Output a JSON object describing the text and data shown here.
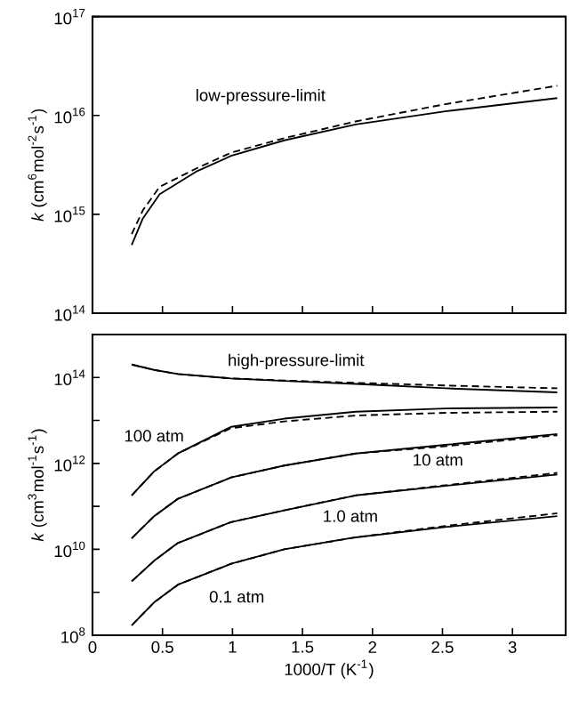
{
  "chart_data": [
    {
      "type": "line",
      "ylabel": "*k* (cm$^{6}$mol$^{-2}$s$^{-1}$)",
      "log": "y",
      "tick_labels": "y",
      "xlim": [
        0,
        3.38
      ],
      "ylim": [
        100000000000000.0,
        1e+17
      ],
      "xticks": [
        0,
        0.5,
        1,
        1.5,
        2,
        2.5,
        3
      ],
      "yticks": [
        {
          "value": 100000000000000.0,
          "label": "10$^{14}$"
        },
        {
          "value": 1000000000000000.0,
          "label": "10$^{15}$"
        },
        {
          "value": 1e+16,
          "label": "10$^{16}$"
        },
        {
          "value": 1e+17,
          "label": "10$^{17}$"
        }
      ],
      "annotations": [
        "low-pressure-limit"
      ],
      "series": [
        {
          "color": "#000000",
          "line_style": "solid",
          "x": [
            0.28,
            0.36,
            0.48,
            0.74,
            0.99,
            1.37,
            1.88,
            2.52,
            3.32
          ],
          "values": [
            490000000000000.0,
            910000000000000.0,
            1600000000000000.0,
            2700000000000000.0,
            3900000000000000.0,
            5600000000000000.0,
            8100000000000000.0,
            1.1e+16,
            1.5e+16
          ]
        },
        {
          "color": "#000000",
          "line_style": "dashed",
          "x": [
            0.28,
            0.36,
            0.48,
            0.74,
            0.99,
            1.37,
            1.88,
            2.52,
            3.32
          ],
          "values": [
            630000000000000.0,
            1100000000000000.0,
            1900000000000000.0,
            2900000000000000.0,
            4200000000000000.0,
            5900000000000000.0,
            8700000000000000.0,
            1.3e+16,
            2e+16
          ]
        }
      ]
    },
    {
      "type": "line",
      "xlabel": "1000/T (K$^{-1}$)",
      "ylabel": "*k* (cm$^{3}$mol$^{-1}$s$^{-1}$)",
      "log": "y",
      "xlim": [
        0,
        3.38
      ],
      "ylim": [
        100000000.0,
        1000000000000000.0
      ],
      "xticks": [
        0,
        0.5,
        1,
        1.5,
        2,
        2.5,
        3
      ],
      "yticks": [
        {
          "value": 100000000.0,
          "label": "10$^{8}$"
        },
        {
          "value": 1000000000.0,
          "label": null
        },
        {
          "value": 10000000000.0,
          "label": "10$^{10}$"
        },
        {
          "value": 100000000000.0,
          "label": null
        },
        {
          "value": 1000000000000.0,
          "label": "10$^{12}$"
        },
        {
          "value": 10000000000000.0,
          "label": null
        },
        {
          "value": 100000000000000.0,
          "label": "10$^{14}$"
        }
      ],
      "annotations": [
        "high-pressure-limit",
        "100 atm",
        "10 atm",
        "1.0 atm",
        "0.1 atm"
      ],
      "series": [
        {
          "color": "#000000",
          "line_style": "solid",
          "x": [
            0.28,
            0.44,
            0.61,
            0.99,
            1.37,
            1.88,
            2.52,
            3.32
          ],
          "values": [
            200000000000000.0,
            150000000000000.0,
            120000000000000.0,
            95000000000000.0,
            83000000000000.0,
            71000000000000.0,
            56000000000000.0,
            45000000000000.0
          ]
        },
        {
          "color": "#000000",
          "line_style": "dashed",
          "x": [
            0.28,
            0.44,
            0.61,
            0.99,
            1.37,
            1.88,
            2.52,
            3.32
          ],
          "values": [
            200000000000000.0,
            150000000000000.0,
            120000000000000.0,
            95000000000000.0,
            85000000000000.0,
            75000000000000.0,
            65000000000000.0,
            56000000000000.0
          ]
        },
        {
          "color": "#000000",
          "line_style": "solid",
          "x": [
            0.28,
            0.44,
            0.61,
            0.99,
            1.37,
            1.88,
            2.52,
            3.32
          ],
          "values": [
            180000000000.0,
            650000000000.0,
            1700000000000.0,
            7100000000000.0,
            11000000000000.0,
            16000000000000.0,
            19000000000000.0,
            20000000000000.0
          ]
        },
        {
          "color": "#000000",
          "line_style": "dashed",
          "x": [
            0.28,
            0.44,
            0.61,
            0.99,
            1.37,
            1.88,
            2.52,
            3.32
          ],
          "values": [
            180000000000.0,
            650000000000.0,
            1700000000000.0,
            6600000000000.0,
            9500000000000.0,
            13000000000000.0,
            15000000000000.0,
            16000000000000.0
          ]
        },
        {
          "color": "#000000",
          "line_style": "solid",
          "x": [
            0.28,
            0.44,
            0.61,
            0.99,
            1.37,
            1.88,
            2.52,
            3.32
          ],
          "values": [
            18000000000.0,
            59000000000.0,
            150000000000.0,
            470000000000.0,
            890000000000.0,
            1700000000000.0,
            2700000000000.0,
            4800000000000.0
          ]
        },
        {
          "color": "#000000",
          "line_style": "dashed",
          "x": [
            0.28,
            0.44,
            0.61,
            0.99,
            1.37,
            1.88,
            2.52,
            3.32
          ],
          "values": [
            18000000000.0,
            59000000000.0,
            150000000000.0,
            470000000000.0,
            890000000000.0,
            1700000000000.0,
            2500000000000.0,
            4500000000000.0
          ]
        },
        {
          "color": "#000000",
          "line_style": "solid",
          "x": [
            0.28,
            0.44,
            0.61,
            0.99,
            1.37,
            1.88,
            2.52,
            3.32
          ],
          "values": [
            1800000000.0,
            5400000000.0,
            14000000000.0,
            43000000000.0,
            81000000000.0,
            180000000000.0,
            300000000000.0,
            550000000000.0
          ]
        },
        {
          "color": "#000000",
          "line_style": "dashed",
          "x": [
            0.28,
            0.44,
            0.61,
            0.99,
            1.37,
            1.88,
            2.52,
            3.32
          ],
          "values": [
            1800000000.0,
            5400000000.0,
            14000000000.0,
            43000000000.0,
            81000000000.0,
            180000000000.0,
            310000000000.0,
            600000000000.0
          ]
        },
        {
          "color": "#000000",
          "line_style": "solid",
          "x": [
            0.28,
            0.44,
            0.61,
            0.99,
            1.37,
            1.88,
            2.52,
            3.32
          ],
          "values": [
            170000000.0,
            580000000.0,
            1500000000.0,
            4600000000.0,
            10000000000.0,
            19000000000.0,
            33000000000.0,
            59000000000.0
          ]
        },
        {
          "color": "#000000",
          "line_style": "dashed",
          "x": [
            0.28,
            0.44,
            0.61,
            0.99,
            1.37,
            1.88,
            2.52,
            3.32
          ],
          "values": [
            170000000.0,
            580000000.0,
            1500000000.0,
            4600000000.0,
            10000000000.0,
            19000000000.0,
            35000000000.0,
            69000000000.0
          ]
        }
      ]
    }
  ]
}
